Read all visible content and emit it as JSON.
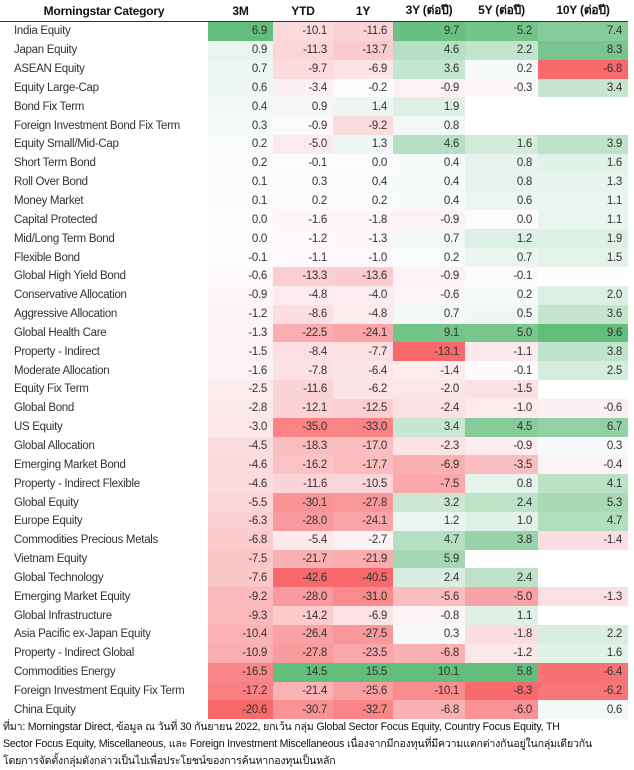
{
  "table": {
    "headers": [
      "Morningstar Category",
      "3M",
      "YTD",
      "1Y",
      "3Y (ต่อปี)",
      "5Y (ต่อปี)",
      "10Y (ต่อปี)"
    ],
    "rows": [
      {
        "category": "India Equity",
        "values": [
          "6.9",
          "-10.1",
          "-11.6",
          "9.7",
          "5.2",
          "7.4"
        ]
      },
      {
        "category": "Japan Equity",
        "values": [
          "0.9",
          "-11.3",
          "-13.7",
          "4.6",
          "2.2",
          "8.3"
        ]
      },
      {
        "category": "ASEAN Equity",
        "values": [
          "0.7",
          "-9.7",
          "-6.9",
          "3.6",
          "0.2",
          "-6.8"
        ]
      },
      {
        "category": "Equity Large-Cap",
        "values": [
          "0.6",
          "-3.4",
          "-0.2",
          "-0.9",
          "-0.3",
          "3.4"
        ]
      },
      {
        "category": "Bond Fix Term",
        "values": [
          "0.4",
          "0.9",
          "1.4",
          "1.9",
          "",
          ""
        ]
      },
      {
        "category": "Foreign Investment Bond Fix Term",
        "values": [
          "0.3",
          "-0.9",
          "-9.2",
          "0.8",
          "",
          ""
        ]
      },
      {
        "category": "Equity Small/Mid-Cap",
        "values": [
          "0.2",
          "-5.0",
          "1.3",
          "4.6",
          "1.6",
          "3.9"
        ]
      },
      {
        "category": "Short Term Bond",
        "values": [
          "0.2",
          "-0.1",
          "0.0",
          "0.4",
          "0.8",
          "1.6"
        ]
      },
      {
        "category": "Roll Over Bond",
        "values": [
          "0.1",
          "0.3",
          "0.4",
          "0.4",
          "0.8",
          "1.3"
        ]
      },
      {
        "category": "Money Market",
        "values": [
          "0.1",
          "0.2",
          "0.2",
          "0.4",
          "0.6",
          "1.1"
        ]
      },
      {
        "category": "Capital Protected",
        "values": [
          "0.0",
          "-1.6",
          "-1.8",
          "-0.9",
          "0.0",
          "1.1"
        ]
      },
      {
        "category": "Mid/Long Term Bond",
        "values": [
          "0.0",
          "-1.2",
          "-1.3",
          "0.7",
          "1.2",
          "1.9"
        ]
      },
      {
        "category": "Flexible Bond",
        "values": [
          "-0.1",
          "-1.1",
          "-1.0",
          "0.2",
          "0.7",
          "1.5"
        ]
      },
      {
        "category": "Global High Yield Bond",
        "values": [
          "-0.6",
          "-13.3",
          "-13.6",
          "-0.9",
          "-0.1",
          ""
        ]
      },
      {
        "category": "Conservative Allocation",
        "values": [
          "-0.9",
          "-4.8",
          "-4.0",
          "-0.6",
          "0.2",
          "2.0"
        ]
      },
      {
        "category": "Aggressive Allocation",
        "values": [
          "-1.2",
          "-8.6",
          "-4.8",
          "0.7",
          "0.5",
          "3.6"
        ]
      },
      {
        "category": "Global Health Care",
        "values": [
          "-1.3",
          "-22.5",
          "-24.1",
          "9.1",
          "5.0",
          "9.6"
        ]
      },
      {
        "category": "Property - Indirect",
        "values": [
          "-1.5",
          "-8.4",
          "-7.7",
          "-13.1",
          "-1.1",
          "3.8"
        ]
      },
      {
        "category": "Moderate Allocation",
        "values": [
          "-1.6",
          "-7.8",
          "-6.4",
          "-1.4",
          "-0.1",
          "2.5"
        ]
      },
      {
        "category": "Equity Fix Term",
        "values": [
          "-2.5",
          "-11.6",
          "-6.2",
          "-2.0",
          "-1.5",
          ""
        ]
      },
      {
        "category": "Global Bond",
        "values": [
          "-2.8",
          "-12.1",
          "-12.5",
          "-2.4",
          "-1.0",
          "-0.6"
        ]
      },
      {
        "category": "US Equity",
        "values": [
          "-3.0",
          "-35.0",
          "-33.0",
          "3.4",
          "4.5",
          "6.7"
        ]
      },
      {
        "category": "Global Allocation",
        "values": [
          "-4.5",
          "-18.3",
          "-17.0",
          "-2.3",
          "-0.9",
          "0.3"
        ]
      },
      {
        "category": "Emerging Market Bond",
        "values": [
          "-4.6",
          "-16.2",
          "-17.7",
          "-6.9",
          "-3.5",
          "-0.4"
        ]
      },
      {
        "category": "Property - Indirect Flexible",
        "values": [
          "-4.6",
          "-11.6",
          "-10.5",
          "-7.5",
          "0.8",
          "4.1"
        ]
      },
      {
        "category": "Global Equity",
        "values": [
          "-5.5",
          "-30.1",
          "-27.8",
          "3.2",
          "2.4",
          "5.3"
        ]
      },
      {
        "category": "Europe Equity",
        "values": [
          "-6.3",
          "-28.0",
          "-24.1",
          "1.2",
          "1.0",
          "4.7"
        ]
      },
      {
        "category": "Commodities Precious Metals",
        "values": [
          "-6.8",
          "-5.4",
          "-2.7",
          "4.7",
          "3.8",
          "-1.4"
        ]
      },
      {
        "category": "Vietnam Equity",
        "values": [
          "-7.5",
          "-21.7",
          "-21.9",
          "5.9",
          "",
          ""
        ]
      },
      {
        "category": "Global Technology",
        "values": [
          "-7.6",
          "-42.6",
          "-40.5",
          "2.4",
          "2.4",
          ""
        ]
      },
      {
        "category": "Emerging Market Equity",
        "values": [
          "-9.2",
          "-28.0",
          "-31.0",
          "-5.6",
          "-5.0",
          "-1.3"
        ]
      },
      {
        "category": "Global Infrastructure",
        "values": [
          "-9.3",
          "-14.2",
          "-6.9",
          "-0.8",
          "1.1",
          ""
        ]
      },
      {
        "category": "Asia Pacific ex-Japan Equity",
        "values": [
          "-10.4",
          "-26.4",
          "-27.5",
          "0.3",
          "-1.8",
          "2.2"
        ]
      },
      {
        "category": "Property - Indirect Global",
        "values": [
          "-10.9",
          "-27.8",
          "-23.5",
          "-6.8",
          "-1.2",
          "1.6"
        ]
      },
      {
        "category": "Commodities Energy",
        "values": [
          "-16.5",
          "14.5",
          "15.5",
          "10.1",
          "5.8",
          "-6.4"
        ]
      },
      {
        "category": "Foreign Investment Equity Fix Term",
        "values": [
          "-17.2",
          "-21.4",
          "-25.6",
          "-10.1",
          "-8.3",
          "-6.2"
        ]
      },
      {
        "category": "China Equity",
        "values": [
          "-20.6",
          "-30.7",
          "-32.7",
          "-6.8",
          "-6.0",
          "0.6"
        ]
      }
    ]
  },
  "colors": {
    "positive": "#63be7b",
    "negative": "#f8696b",
    "neutral": "#fcfcff"
  },
  "footnote": {
    "line1": "ที่มา: Morningstar Direct, ข้อมูล ณ วันที่ 30 กันยายน 2022, ยกเว้น กลุ่ม Global Sector Focus Equity, Country Focus Equity, TH",
    "line2": "Sector Focus Equity, Miscellaneous, และ Foreign Investment Miscellaneous เนื่องจากมีกองทุนที่มีความแตกต่างกันอยู่ในกลุ่มเดียวกัน",
    "line3": "โดยการจัดตั้งกลุ่มดังกล่าวเป็นไปเพื่อประโยชน์ของการค้นหากองทุนเป็นหลัก"
  }
}
